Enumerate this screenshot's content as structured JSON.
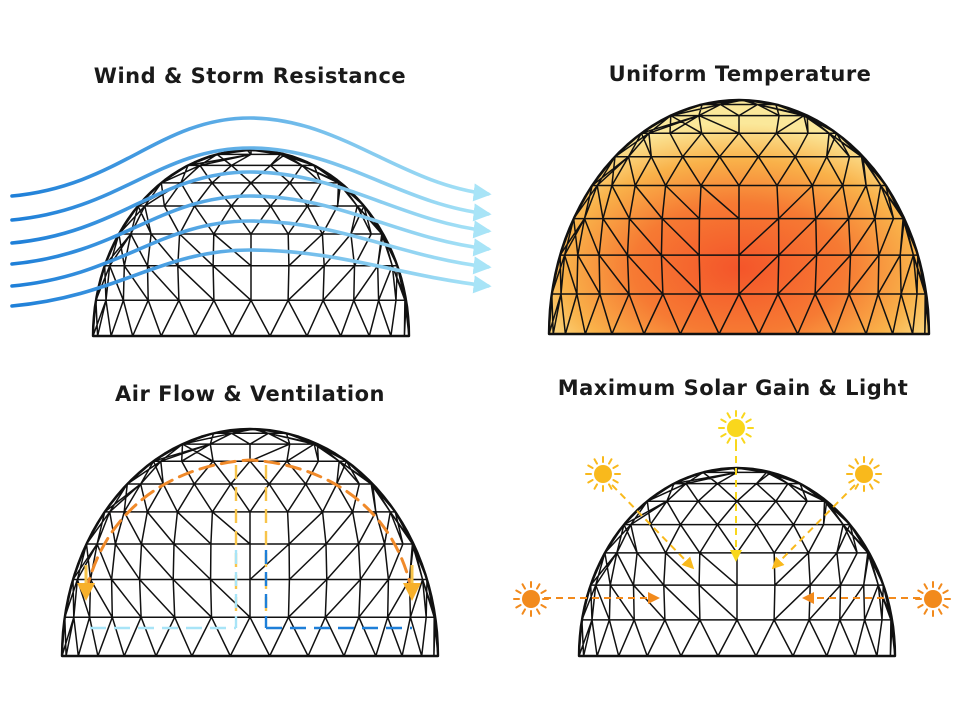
{
  "panels": [
    {
      "id": "wind",
      "title": "Wind & Storm Resistance"
    },
    {
      "id": "temperature",
      "title": "Uniform Temperature"
    },
    {
      "id": "airflow",
      "title": "Air Flow & Ventilation"
    },
    {
      "id": "solar",
      "title": "Maximum Solar Gain & Light"
    }
  ],
  "colors": {
    "frame": "#111111",
    "wind_dark": "#1e7fd8",
    "wind_light": "#a8e4f7",
    "heat_outer": "#fbe89a",
    "heat_mid": "#f9b24a",
    "heat_core": "#f4552a",
    "warm_air": "#f08a2a",
    "warm_air_light": "#f7c44a",
    "cool_air": "#1e7fd8",
    "cool_air_light": "#a8e4f7",
    "sun_high": "#f9d71c",
    "sun_mid": "#f9b91c",
    "sun_low": "#f28a1c"
  },
  "icons": {
    "sun": "sun-icon",
    "arrow": "arrow-icon"
  }
}
